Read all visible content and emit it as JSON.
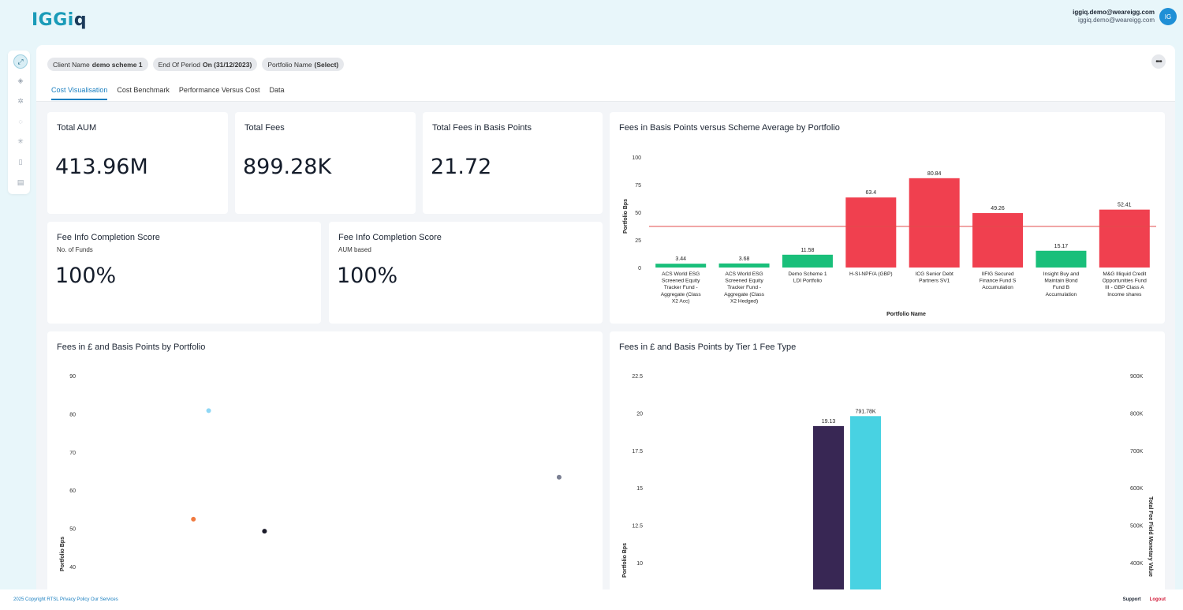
{
  "app": {
    "logo_main": "IGGi",
    "logo_accent": "q"
  },
  "user": {
    "name": "iggiq.demo@weareigg.com",
    "email": "iggiq.demo@weareigg.com",
    "initials": "IG"
  },
  "filters": [
    {
      "label": "Client Name",
      "value": "demo scheme 1"
    },
    {
      "label": "End Of Period",
      "value": "On (31/12/2023)"
    },
    {
      "label": "Portfolio Name",
      "value": "(Select)"
    }
  ],
  "more_icon": "•••",
  "tabs": [
    {
      "label": "Cost Visualisation",
      "active": true
    },
    {
      "label": "Cost Benchmark",
      "active": false
    },
    {
      "label": "Performance Versus Cost",
      "active": false
    },
    {
      "label": "Data",
      "active": false
    }
  ],
  "sidebar_icons": [
    "expand-icon",
    "dashboard-icon",
    "settings-icon",
    "loading-icon",
    "network-icon",
    "book-icon",
    "report-icon"
  ],
  "kpis": {
    "total_aum": {
      "title": "Total AUM",
      "value": "413.96M"
    },
    "total_fees": {
      "title": "Total Fees",
      "value": "899.28K"
    },
    "total_fees_bps": {
      "title": "Total Fees in Basis Points",
      "value": "21.72"
    },
    "completion_funds": {
      "title": "Fee Info Completion Score",
      "subtitle": "No. of Funds",
      "value": "100%"
    },
    "completion_aum": {
      "title": "Fee Info Completion Score",
      "subtitle": "AUM based",
      "value": "100%"
    }
  },
  "colors": {
    "green": "#19bf7a",
    "red": "#f0404f",
    "purple": "#382754",
    "cyan": "#48d2e2",
    "accent": "#1a7fc0"
  },
  "chart_data": [
    {
      "type": "bar",
      "title": "Fees in Basis Points versus Scheme Average by Portfolio",
      "xlabel": "Portfolio Name",
      "ylabel": "Portfolio Bps",
      "ylim": [
        0,
        100
      ],
      "yticks": [
        0,
        25,
        50,
        75,
        100
      ],
      "reference_line": 37.2,
      "categories": [
        "ACS World ESG Screened Equity Tracker Fund - Aggregate (Class X2 Acc)",
        "ACS World ESG Screened Equity Tracker Fund - Aggregate (Class X2 Hedged)",
        "Demo Scheme 1 LDI Portfolio",
        "H-SI-NPF/A (GBP)",
        "ICG Senior Debt Partners SV1",
        "IIFIG Secured Finance Fund S Accumulation",
        "Insight Buy and Maintain Bond Fund B Accumulation",
        "M&G Illiquid Credit Opportunities Fund III - GBP Class A Income shares"
      ],
      "category_lines": [
        [
          "ACS World ESG",
          "Screened Equity",
          "Tracker Fund -",
          "Aggregate (Class",
          "X2 Acc)"
        ],
        [
          "ACS World ESG",
          "Screened Equity",
          "Tracker Fund -",
          "Aggregate (Class",
          "X2 Hedged)"
        ],
        [
          "Demo Scheme 1",
          "LDI Portfolio"
        ],
        [
          "H-SI-NPF/A (GBP)"
        ],
        [
          "ICG Senior Debt",
          "Partners SV1"
        ],
        [
          "IIFIG Secured",
          "Finance Fund S",
          "Accumulation"
        ],
        [
          "Insight Buy and",
          "Maintain Bond",
          "Fund B",
          "Accumulation"
        ],
        [
          "M&G Illiquid Credit",
          "Opportunities Fund",
          "III - GBP Class A",
          "Income shares"
        ]
      ],
      "values": [
        3.44,
        3.68,
        11.58,
        63.4,
        80.84,
        49.26,
        15.17,
        52.41
      ],
      "labels": [
        "3.44",
        "3.68",
        "11.58",
        "63.4",
        "80.84",
        "49.26",
        "15.17",
        "52.41"
      ],
      "bar_colors": [
        "green",
        "green",
        "green",
        "red",
        "red",
        "red",
        "green",
        "red"
      ]
    },
    {
      "type": "scatter",
      "title": "Fees in £ and Basis Points by Portfolio",
      "ylabel": "Portfolio Bps",
      "ylim": [
        36,
        90
      ],
      "yticks": [
        40,
        50,
        60,
        70,
        80,
        90
      ],
      "points": [
        {
          "x": 0.24,
          "y": 80.84,
          "color": "#8fd7f5"
        },
        {
          "x": 0.21,
          "y": 52.41,
          "color": "#f07a40"
        },
        {
          "x": 0.35,
          "y": 49.26,
          "color": "#1c1c2a"
        },
        {
          "x": 0.93,
          "y": 63.4,
          "color": "#7a7f92"
        }
      ]
    },
    {
      "type": "bar",
      "title": "Fees in £ and Basis Points by Tier 1 Fee Type",
      "ylabel": "Portfolio Bps",
      "y2label": "Total Fee Field Monetary Value",
      "ylim": [
        7,
        22.5
      ],
      "yticks": [
        10,
        12.5,
        15,
        17.5,
        20,
        22.5
      ],
      "y2lim": [
        280000,
        900000
      ],
      "y2ticks": [
        400000,
        500000,
        600000,
        700000,
        800000,
        900000
      ],
      "y2ticklabels": [
        "400K",
        "500K",
        "600K",
        "700K",
        "800K",
        "900K"
      ],
      "series": [
        {
          "axis": "left",
          "value": 19.13,
          "label": "19.13",
          "color": "purple"
        },
        {
          "axis": "right",
          "value": 791780,
          "label": "791.78K",
          "color": "cyan"
        }
      ]
    }
  ],
  "footer": {
    "left": "2025 Copyright RTSL Privacy Policy Our Services",
    "support": "Support",
    "logout": "Logout"
  }
}
